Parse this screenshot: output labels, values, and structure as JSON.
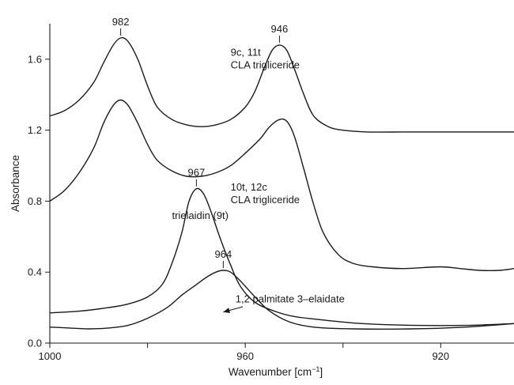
{
  "chart_data": {
    "type": "line",
    "xlabel": "Wavenumber [cm",
    "xlabel_sup": "−1",
    "xlabel_end": "]",
    "ylabel": "Absorbance",
    "xlim": [
      1000,
      905
    ],
    "ylim": [
      0.0,
      1.8
    ],
    "x_ticks": [
      1000,
      980,
      960,
      940,
      920
    ],
    "x_tick_labels": [
      "1000",
      "960",
      "920"
    ],
    "y_ticks": [
      0.0,
      0.4,
      0.8,
      1.2,
      1.6
    ],
    "y_tick_labels": [
      "0.0",
      "0.4",
      "0.8",
      "1.2",
      "1.6"
    ],
    "grid": false,
    "series": [
      {
        "label_lines": [
          "9c, 11t",
          "CLA trigliceride"
        ],
        "label_at": [
          963,
          1.62
        ],
        "points": [
          [
            1000,
            1.28
          ],
          [
            997,
            1.31
          ],
          [
            994,
            1.37
          ],
          [
            991,
            1.47
          ],
          [
            989,
            1.58
          ],
          [
            987,
            1.68
          ],
          [
            985.5,
            1.72
          ],
          [
            984,
            1.7
          ],
          [
            982,
            1.6
          ],
          [
            980,
            1.45
          ],
          [
            978,
            1.33
          ],
          [
            975,
            1.26
          ],
          [
            972,
            1.23
          ],
          [
            969,
            1.22
          ],
          [
            966,
            1.23
          ],
          [
            963,
            1.26
          ],
          [
            960,
            1.33
          ],
          [
            958,
            1.42
          ],
          [
            956,
            1.56
          ],
          [
            954.5,
            1.65
          ],
          [
            953,
            1.68
          ],
          [
            951.5,
            1.65
          ],
          [
            950,
            1.55
          ],
          [
            948,
            1.4
          ],
          [
            946,
            1.28
          ],
          [
            943,
            1.22
          ],
          [
            940,
            1.2
          ],
          [
            935,
            1.19
          ],
          [
            925,
            1.19
          ],
          [
            905,
            1.19
          ]
        ]
      },
      {
        "label_lines": [
          "10t, 12c",
          "CLA trigliceride"
        ],
        "label_at": [
          963,
          0.86
        ],
        "points": [
          [
            1000,
            0.8
          ],
          [
            997,
            0.86
          ],
          [
            994,
            0.96
          ],
          [
            991,
            1.1
          ],
          [
            989,
            1.24
          ],
          [
            987,
            1.34
          ],
          [
            985.5,
            1.37
          ],
          [
            984,
            1.34
          ],
          [
            982,
            1.24
          ],
          [
            980,
            1.12
          ],
          [
            978,
            1.03
          ],
          [
            975,
            0.97
          ],
          [
            972,
            0.94
          ],
          [
            969,
            0.94
          ],
          [
            966,
            0.96
          ],
          [
            963,
            1.0
          ],
          [
            960,
            1.07
          ],
          [
            957,
            1.15
          ],
          [
            955,
            1.22
          ],
          [
            953,
            1.26
          ],
          [
            951.5,
            1.25
          ],
          [
            950,
            1.17
          ],
          [
            948,
            0.98
          ],
          [
            946,
            0.78
          ],
          [
            944,
            0.62
          ],
          [
            941,
            0.5
          ],
          [
            938,
            0.45
          ],
          [
            934,
            0.43
          ],
          [
            928,
            0.42
          ],
          [
            920,
            0.43
          ],
          [
            916,
            0.42
          ],
          [
            912,
            0.41
          ],
          [
            908,
            0.41
          ],
          [
            905,
            0.42
          ]
        ]
      },
      {
        "label_lines": [
          "trielaidin (9t)"
        ],
        "label_at": [
          975,
          0.7
        ],
        "points": [
          [
            1000,
            0.17
          ],
          [
            994,
            0.18
          ],
          [
            988,
            0.2
          ],
          [
            984,
            0.22
          ],
          [
            980,
            0.26
          ],
          [
            977,
            0.33
          ],
          [
            975,
            0.45
          ],
          [
            973,
            0.62
          ],
          [
            971.5,
            0.8
          ],
          [
            970,
            0.87
          ],
          [
            968.5,
            0.84
          ],
          [
            967,
            0.74
          ],
          [
            965,
            0.58
          ],
          [
            963,
            0.44
          ],
          [
            961,
            0.32
          ],
          [
            958,
            0.23
          ],
          [
            954,
            0.18
          ],
          [
            950,
            0.15
          ],
          [
            944,
            0.13
          ],
          [
            936,
            0.11
          ],
          [
            925,
            0.1
          ],
          [
            915,
            0.1
          ],
          [
            905,
            0.11
          ]
        ]
      },
      {
        "label_lines": [
          "1,2 palmitate 3–elaidate"
        ],
        "label_at": [
          962,
          0.23
        ],
        "points": [
          [
            1000,
            0.09
          ],
          [
            996,
            0.085
          ],
          [
            992,
            0.08
          ],
          [
            988,
            0.085
          ],
          [
            984,
            0.1
          ],
          [
            980,
            0.14
          ],
          [
            976,
            0.2
          ],
          [
            973,
            0.27
          ],
          [
            970,
            0.33
          ],
          [
            968,
            0.37
          ],
          [
            966,
            0.4
          ],
          [
            964.5,
            0.41
          ],
          [
            963,
            0.4
          ],
          [
            961,
            0.35
          ],
          [
            958,
            0.26
          ],
          [
            955,
            0.18
          ],
          [
            951,
            0.12
          ],
          [
            946,
            0.09
          ],
          [
            938,
            0.08
          ],
          [
            926,
            0.08
          ],
          [
            915,
            0.09
          ],
          [
            905,
            0.11
          ]
        ]
      }
    ],
    "peak_labels": [
      {
        "text": "982",
        "x": 985.5,
        "y": 1.72
      },
      {
        "text": "946",
        "x": 953,
        "y": 1.68
      },
      {
        "text": "967",
        "x": 970,
        "y": 0.87
      },
      {
        "text": "964",
        "x": 964.5,
        "y": 0.41
      }
    ],
    "arrow": {
      "from": [
        960.5,
        0.205
      ],
      "to": [
        964.5,
        0.175
      ]
    }
  }
}
